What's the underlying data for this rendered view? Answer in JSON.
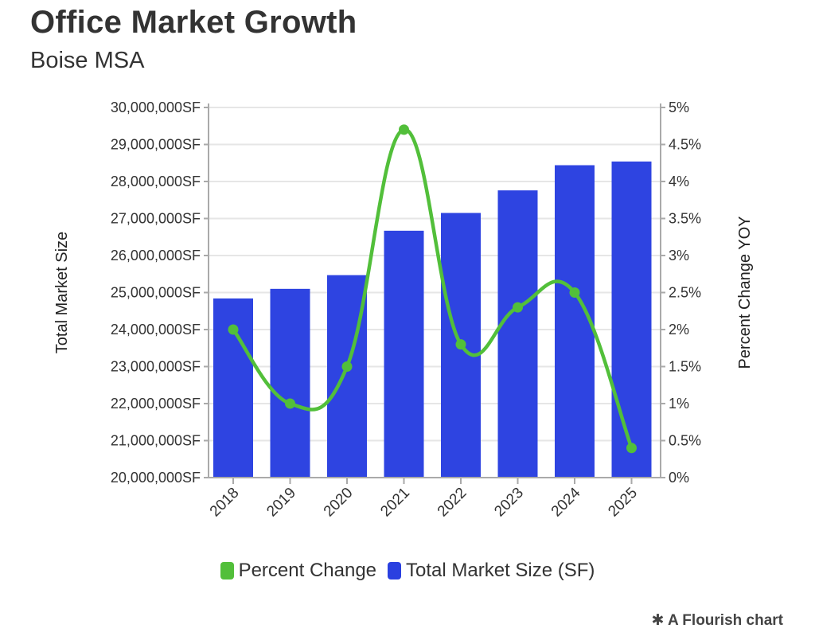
{
  "header": {
    "title": "Office Market Growth",
    "subtitle": "Boise MSA"
  },
  "colors": {
    "bars": "#2a40e0",
    "line": "#52bf3a",
    "grid": "#e6e6e6",
    "axis": "#aaaaaa"
  },
  "chart_data": {
    "type": "bar+line",
    "categories": [
      "2018",
      "2019",
      "2020",
      "2021",
      "2022",
      "2023",
      "2024",
      "2025"
    ],
    "series": [
      {
        "name": "Total Market Size (SF)",
        "type": "bar",
        "axis": "left",
        "values": [
          24840000,
          25100000,
          25470000,
          26670000,
          27150000,
          27760000,
          28440000,
          28540000
        ]
      },
      {
        "name": "Percent Change",
        "type": "line",
        "axis": "right",
        "values": [
          2.0,
          1.0,
          1.5,
          4.7,
          1.8,
          2.3,
          2.5,
          0.4
        ]
      }
    ],
    "left_axis": {
      "label": "Total Market Size",
      "ylim": [
        20000000,
        30000000
      ],
      "ticks": [
        "20,000,000SF",
        "21,000,000SF",
        "22,000,000SF",
        "23,000,000SF",
        "24,000,000SF",
        "25,000,000SF",
        "26,000,000SF",
        "27,000,000SF",
        "28,000,000SF",
        "29,000,000SF",
        "30,000,000SF"
      ]
    },
    "right_axis": {
      "label": "Percent Change YOY",
      "ylim": [
        0,
        5
      ],
      "ticks": [
        "0%",
        "0.5%",
        "1%",
        "1.5%",
        "2%",
        "2.5%",
        "3%",
        "3.5%",
        "4%",
        "4.5%",
        "5%"
      ]
    },
    "grid": true,
    "legend": {
      "placement": "bottom",
      "entries": [
        "Percent Change",
        "Total Market Size (SF)"
      ]
    }
  },
  "footer": {
    "credit": "A Flourish chart"
  }
}
